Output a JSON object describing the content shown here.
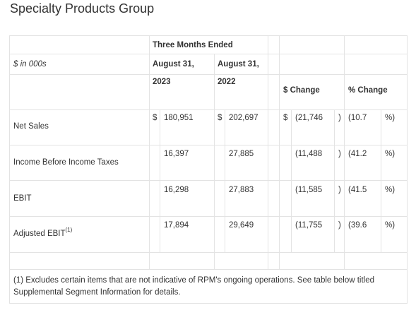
{
  "title": "Specialty Products Group",
  "header": {
    "period": "Three Months Ended",
    "unit_label": "$ in 000s",
    "col_2023_line1": "August 31,",
    "col_2023_line2": "2023",
    "col_2022_line1": "August 31,",
    "col_2022_line2": "2022",
    "dollar_change": "$ Change",
    "pct_change": "% Change"
  },
  "rows": [
    {
      "label": "Net Sales",
      "label_sup": "",
      "cur_sign": "$",
      "v2023": "180,951",
      "prev_sign": "$",
      "v2022": "202,697",
      "chg_sign": "$",
      "chg": "(21,746",
      "chg_close": ")",
      "pct": "(10.7",
      "pct_unit": "%)"
    },
    {
      "label": "Income Before Income Taxes",
      "label_sup": "",
      "cur_sign": "",
      "v2023": "16,397",
      "prev_sign": "",
      "v2022": "27,885",
      "chg_sign": "",
      "chg": "(11,488",
      "chg_close": ")",
      "pct": "(41.2",
      "pct_unit": "%)"
    },
    {
      "label": "EBIT",
      "label_sup": "",
      "cur_sign": "",
      "v2023": "16,298",
      "prev_sign": "",
      "v2022": "27,883",
      "chg_sign": "",
      "chg": "(11,585",
      "chg_close": ")",
      "pct": "(41.5",
      "pct_unit": "%)"
    },
    {
      "label": "Adjusted EBIT",
      "label_sup": "(1)",
      "cur_sign": "",
      "v2023": "17,894",
      "prev_sign": "",
      "v2022": "29,649",
      "chg_sign": "",
      "chg": "(11,755",
      "chg_close": ")",
      "pct": "(39.6",
      "pct_unit": "%)"
    }
  ],
  "footnote": "(1) Excludes certain items that are not indicative of RPM's ongoing operations. See table below titled Supplemental Segment Information for details."
}
